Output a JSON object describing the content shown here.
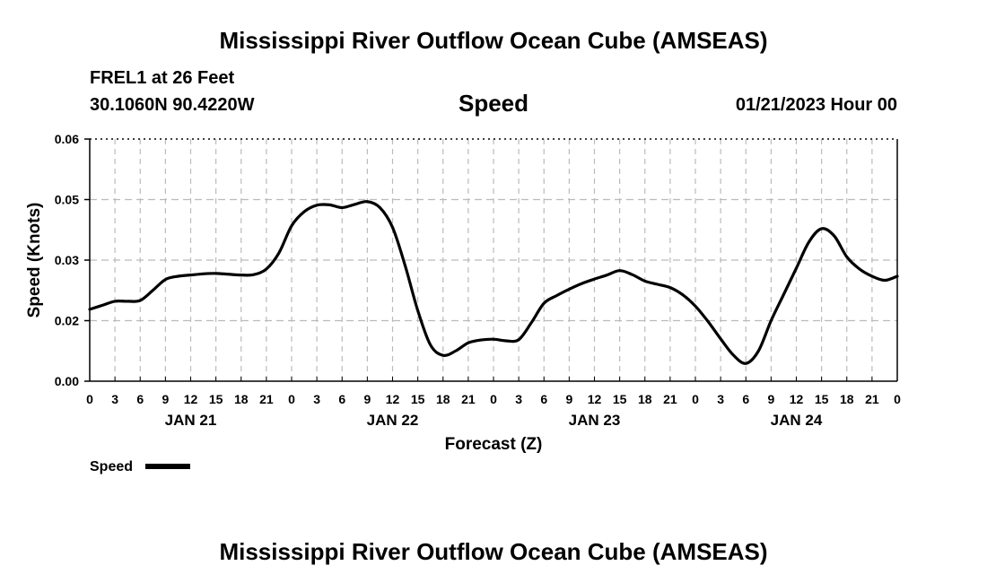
{
  "header": {
    "main_title": "Mississippi River Outflow Ocean Cube (AMSEAS)",
    "station_name": "FREL1 at 26 Feet",
    "station_coords": "30.1060N  90.4220W",
    "chart_title": "Speed",
    "run_time": "01/21/2023 Hour 00"
  },
  "footer": {
    "title": "Mississippi River Outflow Ocean Cube (AMSEAS)"
  },
  "colors": {
    "line": "#000000",
    "grid": "#bbbbbb",
    "background": "#ffffff"
  },
  "chart_data": {
    "type": "line",
    "title": "Speed",
    "xlabel": "Forecast (Z)",
    "ylabel": "Speed (Knots)",
    "ylim": [
      0,
      0.06
    ],
    "y_ticks": [
      0,
      0.015,
      0.03,
      0.045,
      0.06
    ],
    "y_tick_labels": [
      "0.00",
      "0.02",
      "0.03",
      "0.05",
      "0.06"
    ],
    "xlim": [
      0,
      96
    ],
    "x_tick_labels": [
      "0",
      "3",
      "6",
      "9",
      "12",
      "15",
      "18",
      "21",
      "0",
      "3",
      "6",
      "9",
      "12",
      "15",
      "18",
      "21",
      "0",
      "3",
      "6",
      "9",
      "12",
      "15",
      "18",
      "21",
      "0",
      "3",
      "6",
      "9",
      "12",
      "15",
      "18",
      "21",
      "0"
    ],
    "day_labels": [
      {
        "label": "JAN 21",
        "x": 12
      },
      {
        "label": "JAN 22",
        "x": 36
      },
      {
        "label": "JAN 23",
        "x": 60
      },
      {
        "label": "JAN 24",
        "x": 84
      }
    ],
    "grid": true,
    "legend": {
      "position": "bottom-left",
      "entries": [
        "Speed"
      ]
    },
    "series": [
      {
        "name": "Speed",
        "x": [
          0,
          1.5,
          3,
          4.5,
          6,
          7.5,
          9,
          10.5,
          12,
          13.5,
          15,
          16.5,
          18,
          19.5,
          21,
          22.5,
          24,
          25.5,
          27,
          28.5,
          30,
          31.5,
          33,
          34.5,
          36,
          37.5,
          39,
          40.5,
          42,
          43.5,
          45,
          46.5,
          48,
          49.5,
          51,
          52.5,
          54,
          55.5,
          57,
          58.5,
          60,
          61.5,
          63,
          64.5,
          66,
          67.5,
          69,
          70.5,
          72,
          73.5,
          75,
          76.5,
          78,
          79.5,
          81,
          82.5,
          84,
          85.5,
          87,
          88.5,
          90,
          91.5,
          93,
          94.5,
          96
        ],
        "y": [
          0.0178,
          0.0188,
          0.0198,
          0.0198,
          0.02,
          0.0225,
          0.0252,
          0.026,
          0.0263,
          0.0266,
          0.0267,
          0.0265,
          0.0263,
          0.0264,
          0.0278,
          0.0318,
          0.0385,
          0.042,
          0.0436,
          0.0437,
          0.043,
          0.0438,
          0.0445,
          0.043,
          0.0381,
          0.0286,
          0.0175,
          0.009,
          0.0064,
          0.0075,
          0.0095,
          0.0102,
          0.0104,
          0.01,
          0.0103,
          0.0145,
          0.0193,
          0.0212,
          0.0228,
          0.0242,
          0.0253,
          0.0263,
          0.0274,
          0.0264,
          0.0248,
          0.024,
          0.0232,
          0.0214,
          0.0186,
          0.0148,
          0.0105,
          0.0065,
          0.0044,
          0.0075,
          0.015,
          0.0215,
          0.028,
          0.0345,
          0.0378,
          0.036,
          0.0308,
          0.0278,
          0.026,
          0.025,
          0.026
        ]
      }
    ]
  }
}
